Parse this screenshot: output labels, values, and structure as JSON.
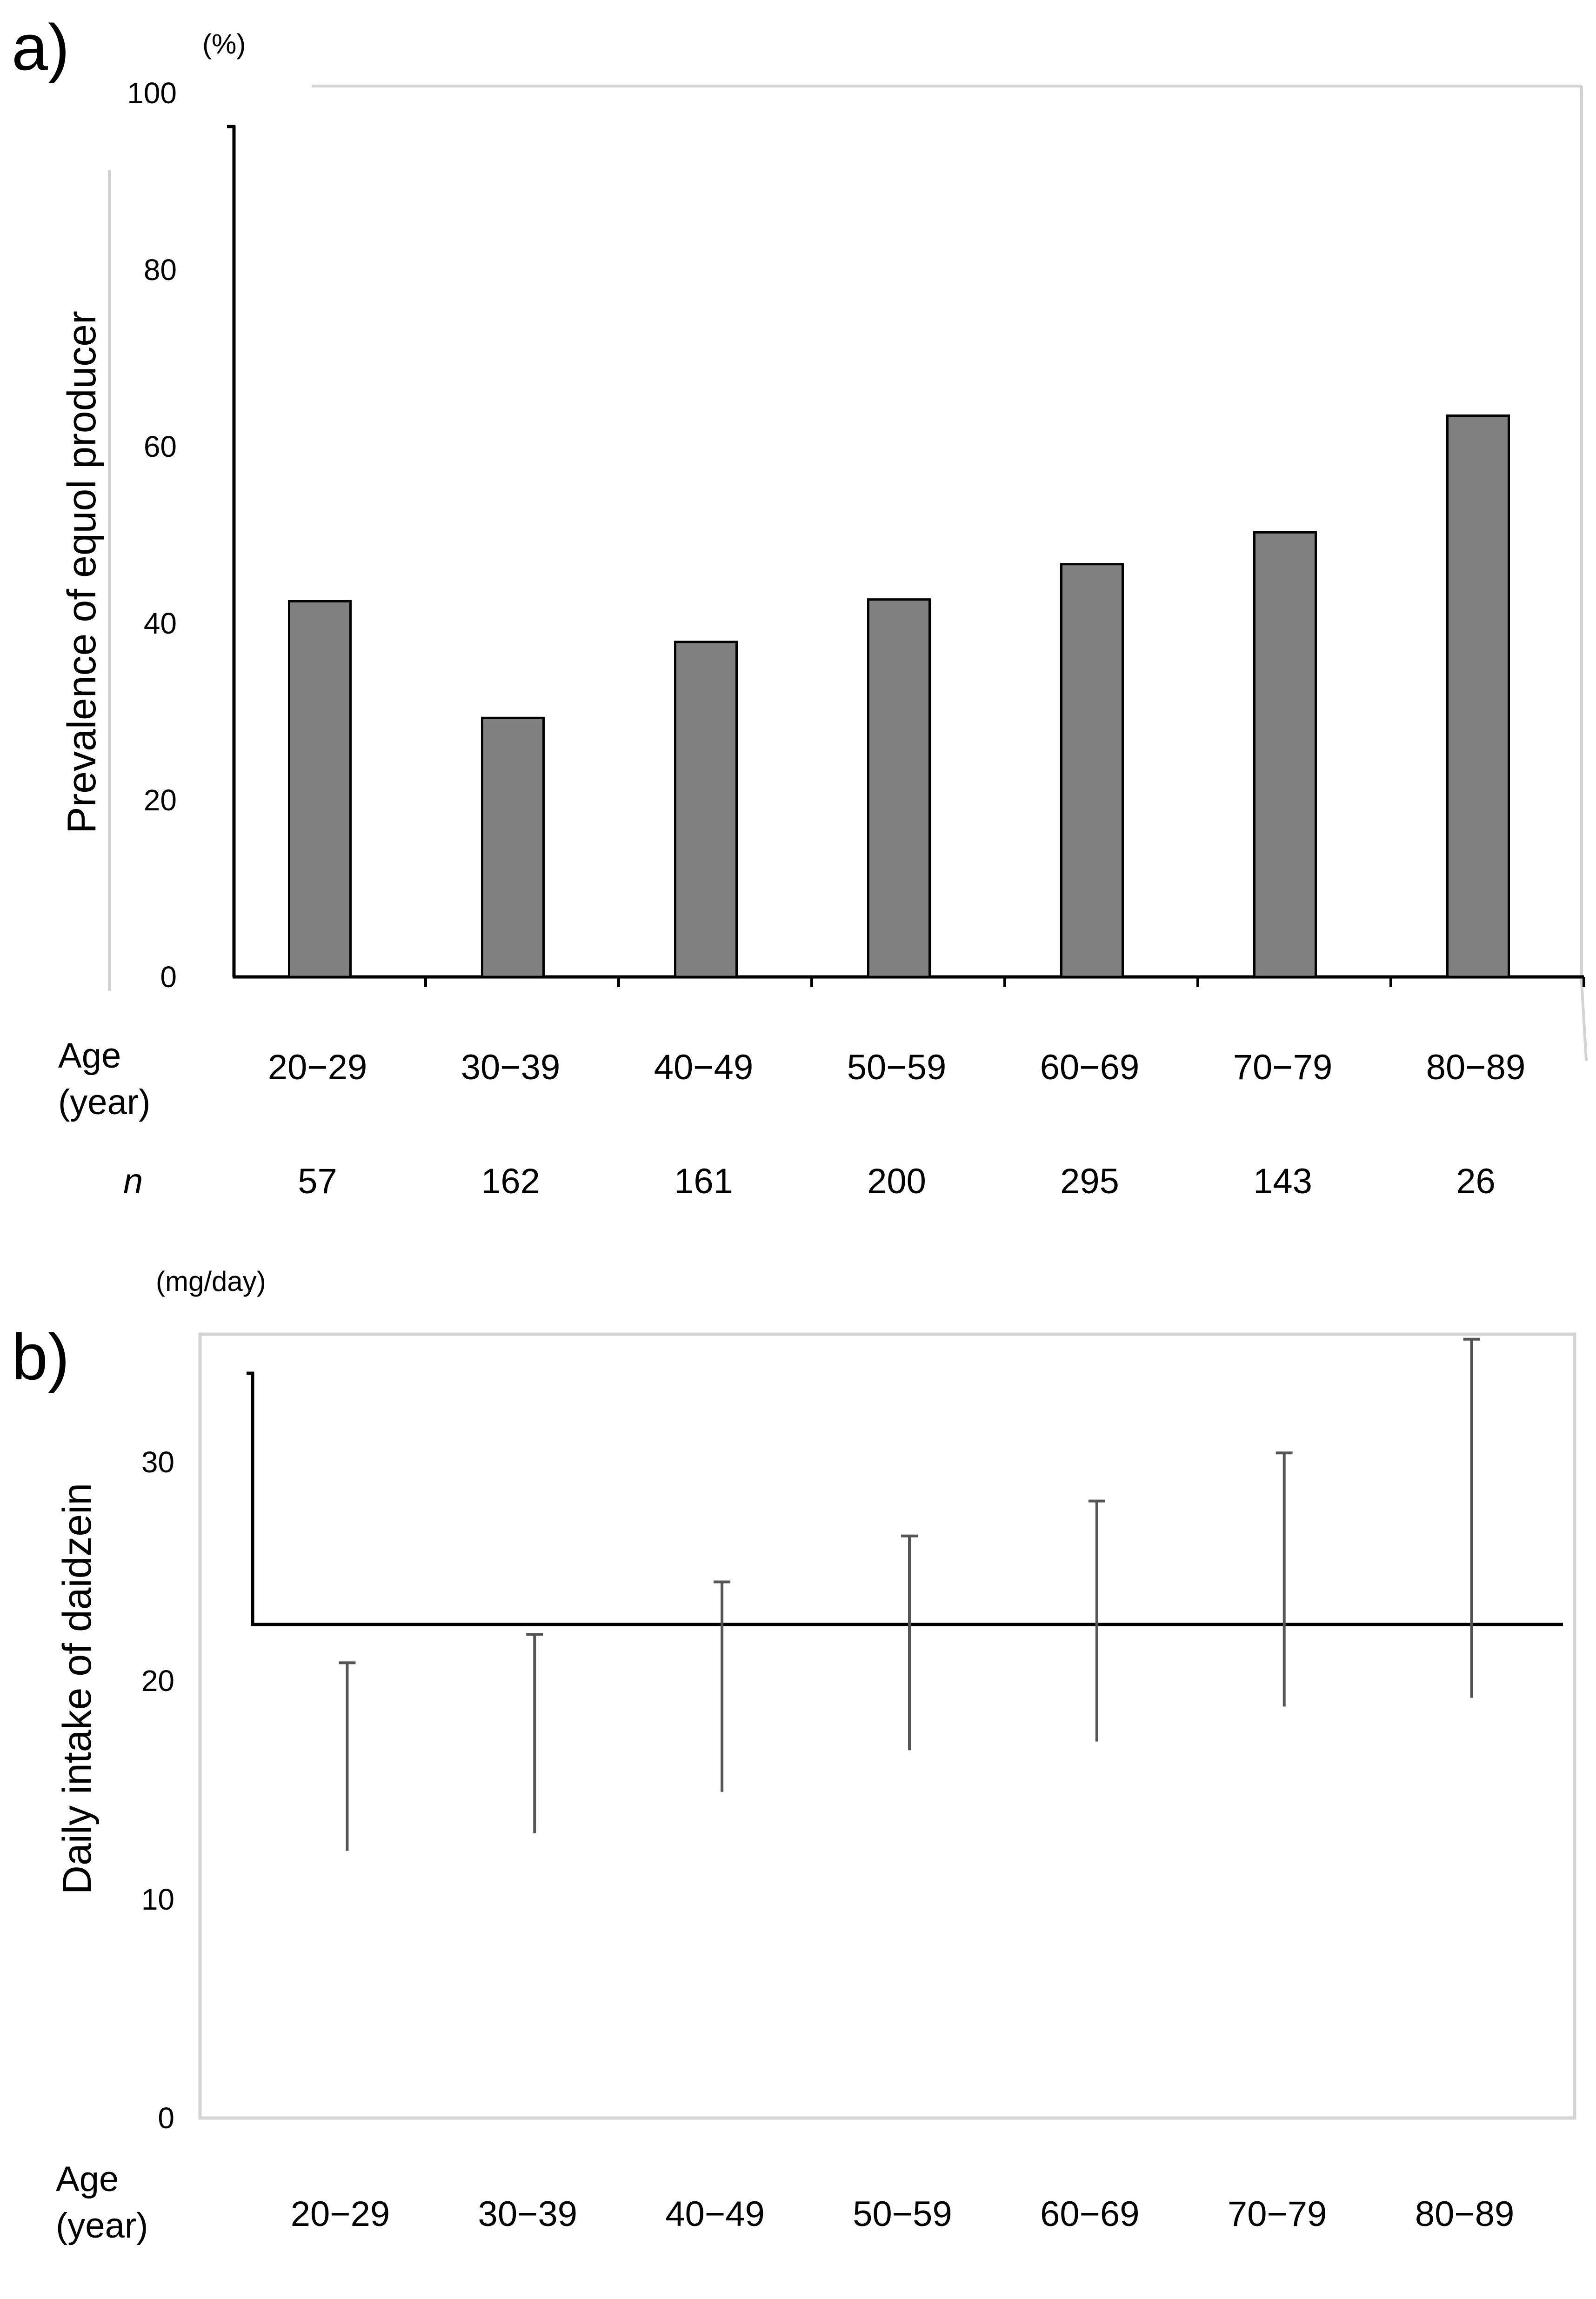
{
  "colors": {
    "bar_a": "#808080",
    "bar_b": "#e6e6e6",
    "frame": "#d4d4d4",
    "axis": "#000000",
    "error": "#555555"
  },
  "chart_data": [
    {
      "panel_label": "a)",
      "type": "bar",
      "unit": "(%)",
      "ylabel": "Prevalence of equol producer",
      "xlabel_line1": "Age",
      "xlabel_line2": "(year)",
      "categories": [
        "20−29",
        "30−39",
        "40−49",
        "50−59",
        "60−69",
        "70−79",
        "80−89"
      ],
      "values": [
        42.5,
        29.3,
        37.9,
        42.7,
        46.7,
        50.3,
        63.5
      ],
      "ylim": [
        0,
        100
      ],
      "yticks": [
        0,
        20,
        40,
        60,
        80,
        100
      ],
      "n_label": "n",
      "n": [
        "57",
        "162",
        "161",
        "200",
        "295",
        "143",
        "26"
      ]
    },
    {
      "panel_label": "b)",
      "type": "bar",
      "unit": "(mg/day)",
      "ylabel": "Daily intake of daidzein",
      "xlabel_line1": "Age",
      "xlabel_line2": "(year)",
      "categories": [
        "20−29",
        "30−39",
        "40−49",
        "50−59",
        "60−69",
        "70−79",
        "80−89"
      ],
      "values": [
        11.2,
        12.0,
        13.9,
        15.8,
        16.2,
        17.8,
        18.2
      ],
      "error_upper": [
        19.8,
        21.1,
        23.5,
        25.6,
        27.2,
        29.4,
        34.6
      ],
      "ylim": [
        0,
        35
      ],
      "yticks": [
        0,
        10,
        20,
        30
      ]
    }
  ]
}
